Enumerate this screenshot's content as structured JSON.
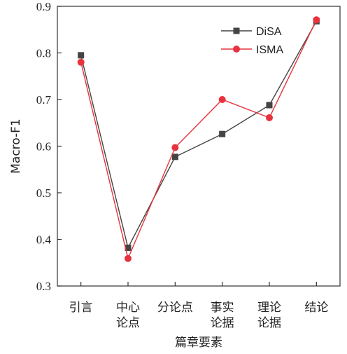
{
  "chart_data": {
    "type": "line",
    "xlabel": "篇章要素",
    "ylabel": "Macro-F1",
    "categories": [
      [
        "引言"
      ],
      [
        "中心",
        "论点"
      ],
      [
        "分论点"
      ],
      [
        "事实",
        "论据"
      ],
      [
        "理论",
        "论据"
      ],
      [
        "结论"
      ]
    ],
    "ylim": [
      0.3,
      0.9
    ],
    "yticks": [
      "0.3",
      "0.4",
      "0.5",
      "0.6",
      "0.7",
      "0.8",
      "0.9"
    ],
    "legend_position": "top-right",
    "series": [
      {
        "name": "DiSA",
        "values": [
          0.795,
          0.382,
          0.577,
          0.626,
          0.688,
          0.868
        ],
        "color": "#444444",
        "marker": "square"
      },
      {
        "name": "ISMA",
        "values": [
          0.78,
          0.359,
          0.597,
          0.7,
          0.661,
          0.871
        ],
        "color": "#e8333e",
        "marker": "circle"
      }
    ],
    "grid": false
  }
}
